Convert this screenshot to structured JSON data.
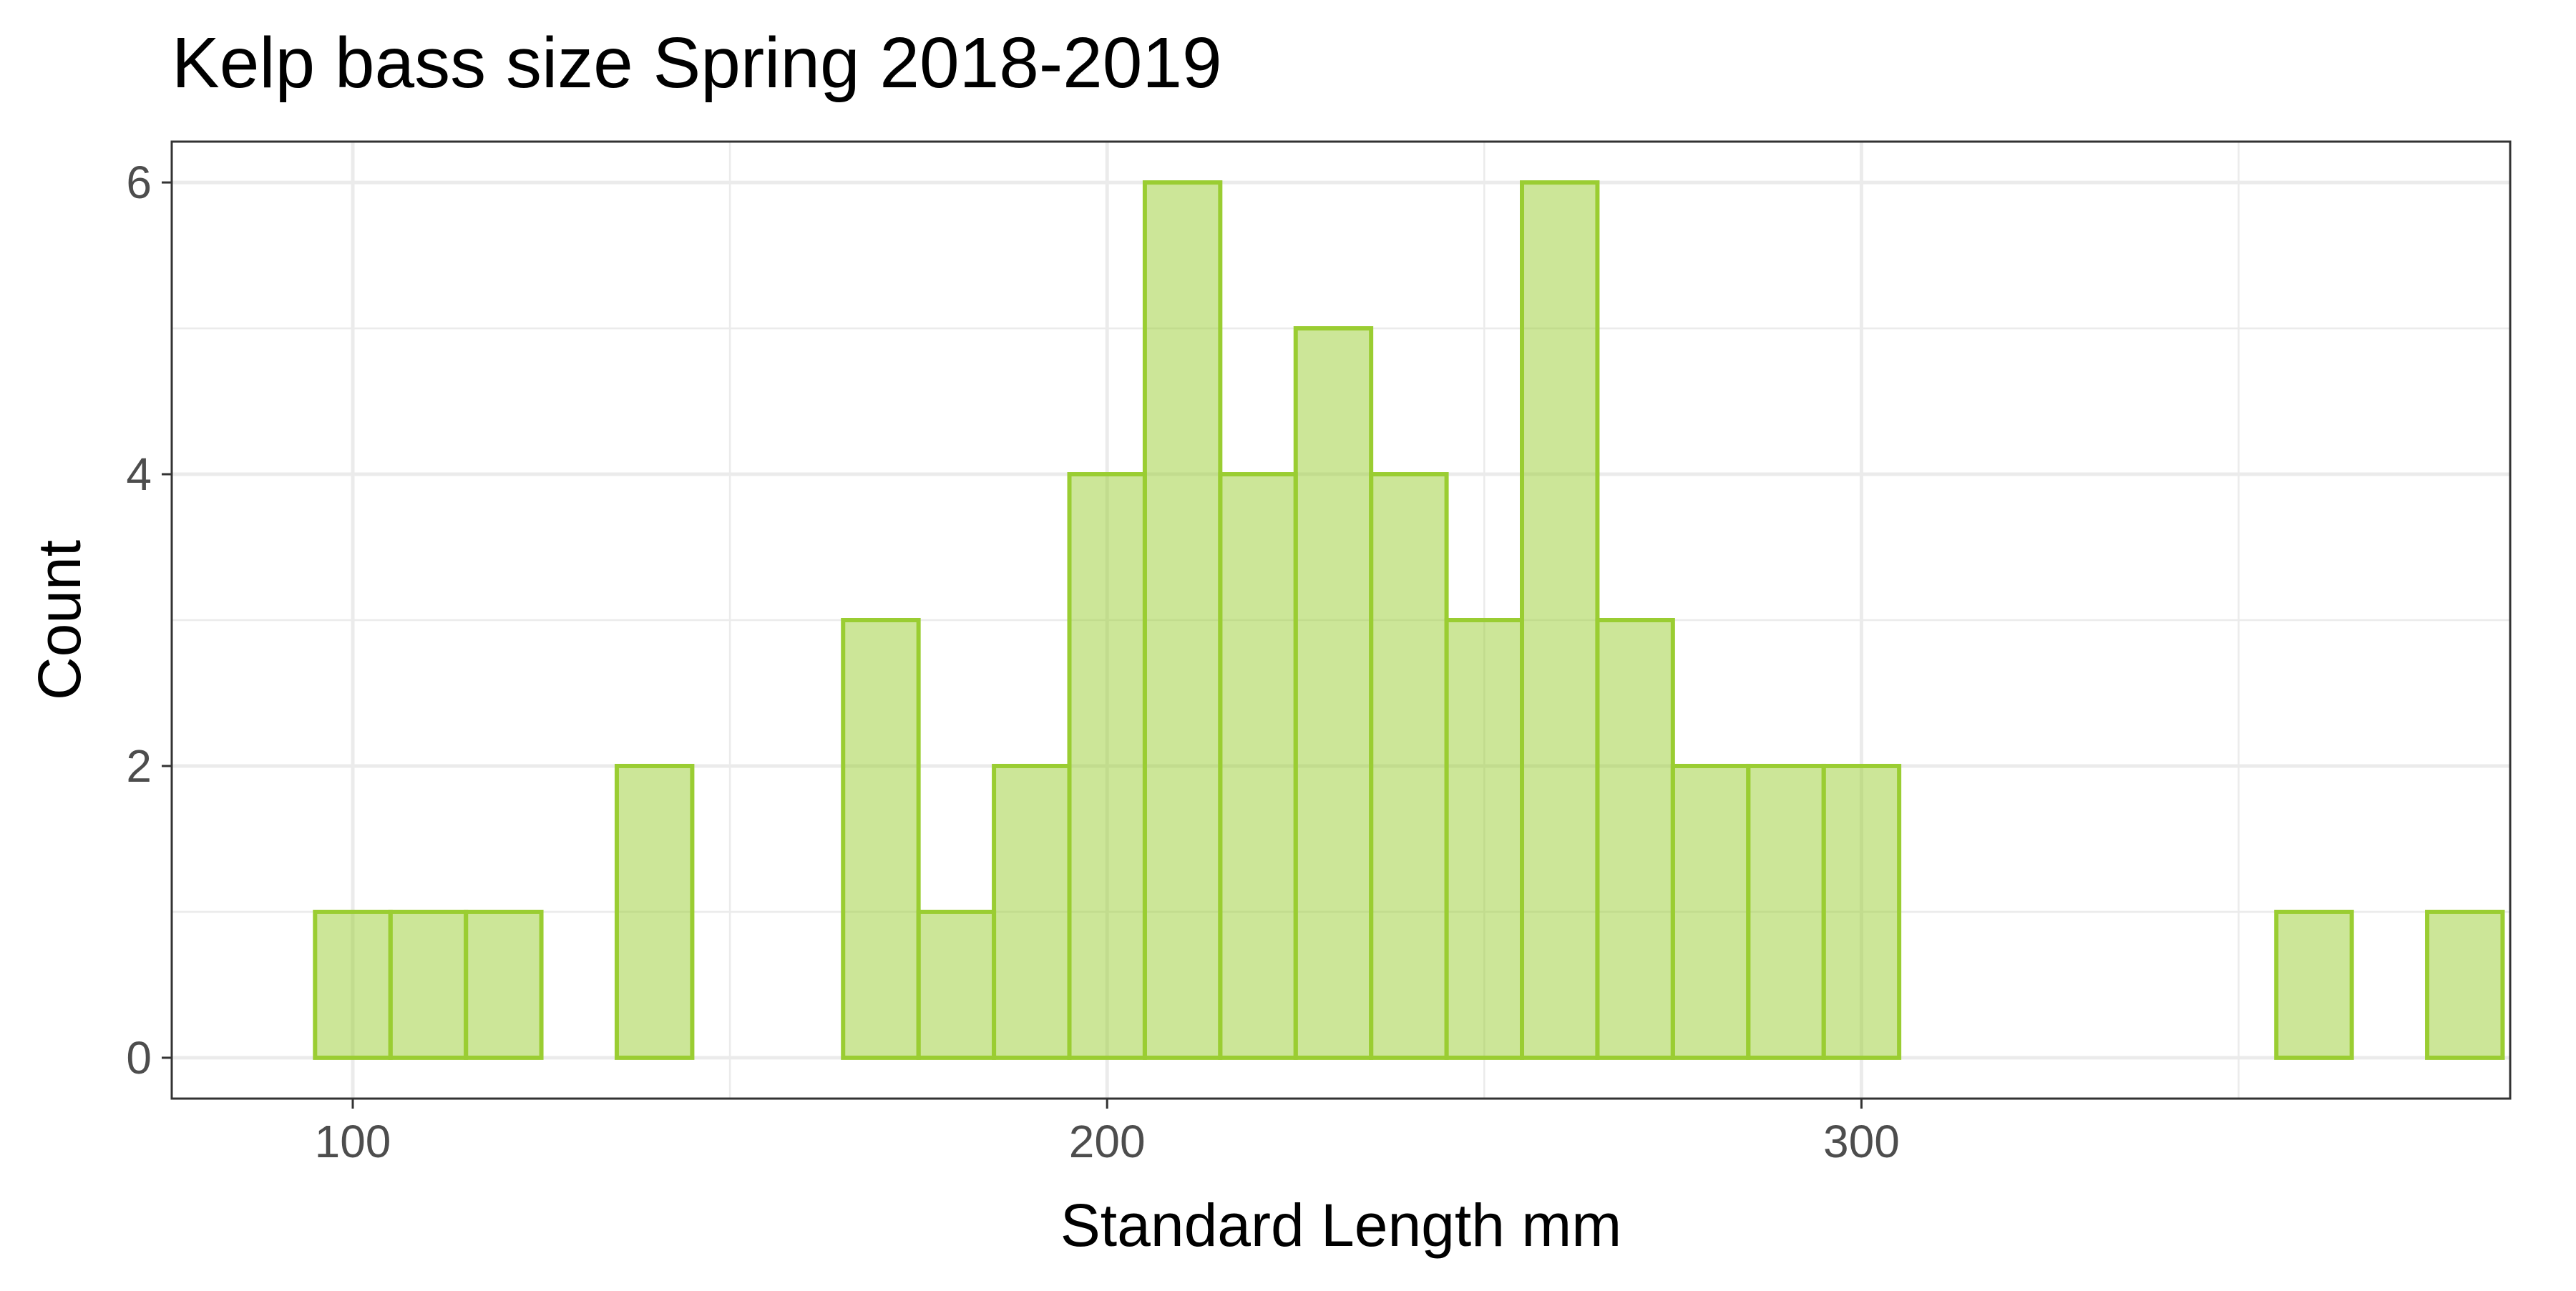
{
  "chart_data": {
    "type": "bar",
    "title": "Kelp bass size Spring 2018-2019",
    "xlabel": "Standard Length mm",
    "ylabel": "Count",
    "bin_width": 10,
    "bins_start": [
      95,
      105,
      115,
      125,
      135,
      145,
      155,
      165,
      175,
      185,
      195,
      205,
      215,
      225,
      235,
      245,
      255,
      265,
      275,
      285,
      295,
      305,
      315,
      325,
      335,
      345,
      355,
      365,
      375
    ],
    "values": [
      1,
      1,
      1,
      0,
      2,
      0,
      0,
      3,
      1,
      2,
      4,
      6,
      4,
      5,
      4,
      3,
      6,
      3,
      2,
      2,
      2,
      0,
      0,
      0,
      0,
      0,
      1,
      0,
      1
    ],
    "xlim": [
      76,
      386
    ],
    "ylim": [
      -0.28,
      6.28
    ],
    "x_ticks": [
      100,
      200,
      300
    ],
    "x_tick_labels": [
      "100",
      "200",
      "300"
    ],
    "y_ticks": [
      0,
      2,
      4,
      6
    ],
    "y_tick_labels": [
      "0",
      "2",
      "4",
      "6"
    ],
    "grid": true,
    "fill_color": "#9ACD32",
    "fill_opacity": 0.5,
    "stroke_color": "#9ACD32"
  }
}
